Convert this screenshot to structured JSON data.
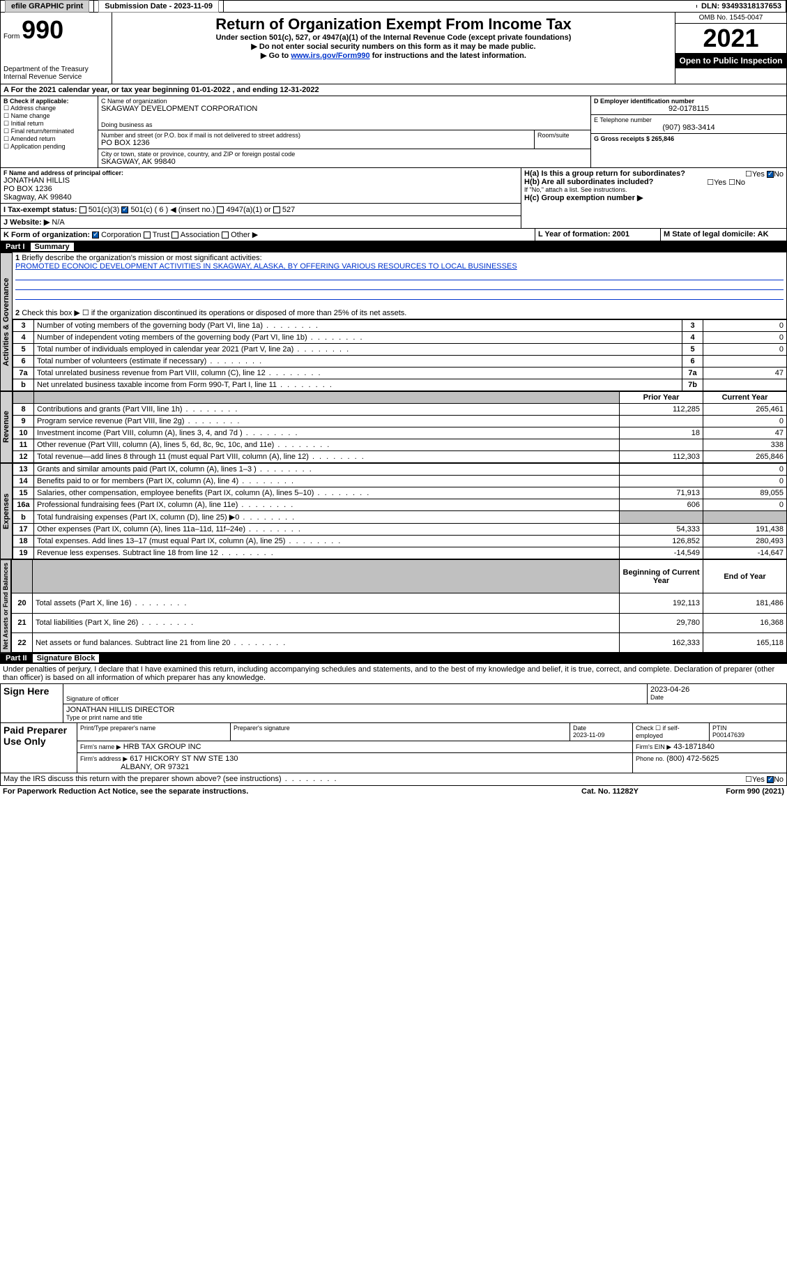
{
  "topbar": {
    "efile": "efile GRAPHIC print",
    "subdate_label": "Submission Date - 2023-11-09",
    "dln_label": "DLN: 93493318137653"
  },
  "header": {
    "form_small": "Form",
    "form_num": "990",
    "dept": "Department of the Treasury",
    "irs": "Internal Revenue Service",
    "title": "Return of Organization Exempt From Income Tax",
    "sub1": "Under section 501(c), 527, or 4947(a)(1) of the Internal Revenue Code (except private foundations)",
    "sub2": "▶ Do not enter social security numbers on this form as it may be made public.",
    "sub3_pre": "▶ Go to ",
    "sub3_link": "www.irs.gov/Form990",
    "sub3_post": " for instructions and the latest information.",
    "omb": "OMB No. 1545-0047",
    "year": "2021",
    "open": "Open to Public Inspection"
  },
  "a_line": {
    "text": "For the 2021 calendar year, or tax year beginning 01-01-2022   , and ending 12-31-2022"
  },
  "b": {
    "label": "B Check if applicable:",
    "items": [
      "Address change",
      "Name change",
      "Initial return",
      "Final return/terminated",
      "Amended return",
      "Application pending"
    ]
  },
  "c": {
    "name_label": "C Name of organization",
    "name": "SKAGWAY DEVELOPMENT CORPORATION",
    "dba_label": "Doing business as",
    "addr_label": "Number and street (or P.O. box if mail is not delivered to street address)",
    "room_label": "Room/suite",
    "addr": "PO BOX 1236",
    "city_label": "City or town, state or province, country, and ZIP or foreign postal code",
    "city": "SKAGWAY, AK  99840"
  },
  "d": {
    "label": "D Employer identification number",
    "val": "92-0178115"
  },
  "e": {
    "label": "E Telephone number",
    "val": "(907) 983-3414"
  },
  "g": {
    "label": "G Gross receipts $ 265,846"
  },
  "f": {
    "label": "F Name and address of principal officer:",
    "name": "JONATHAN HILLIS",
    "addr1": "PO BOX 1236",
    "addr2": "Skagway, AK  99840"
  },
  "h": {
    "a": "H(a)  Is this a group return for subordinates?",
    "b": "H(b)  Are all subordinates included?",
    "b_note": "If \"No,\" attach a list. See instructions.",
    "c": "H(c)  Group exemption number ▶",
    "yes": "Yes",
    "no": "No"
  },
  "i": {
    "label": "I   Tax-exempt status:",
    "opts": [
      "501(c)(3)",
      "501(c) ( 6 ) ◀ (insert no.)",
      "4947(a)(1) or",
      "527"
    ]
  },
  "j": {
    "label": "J   Website: ▶",
    "val": "N/A"
  },
  "k": {
    "label": "K Form of organization:",
    "opts": [
      "Corporation",
      "Trust",
      "Association",
      "Other ▶"
    ]
  },
  "l": {
    "label": "L Year of formation: 2001"
  },
  "m": {
    "label": "M State of legal domicile: AK"
  },
  "part1": {
    "num": "Part I",
    "title": "Summary"
  },
  "summary": {
    "line1_label": "Briefly describe the organization's mission or most significant activities:",
    "line1_val": "PROMOTED ECONOIC DEVELOPMENT ACTIVITIES IN SKAGWAY, ALASKA, BY OFFERING VARIOUS RESOURCES TO LOCAL BUSINESSES",
    "line2": "Check this box ▶ ☐ if the organization discontinued its operations or disposed of more than 25% of its net assets.",
    "rows_ag": [
      {
        "n": "3",
        "t": "Number of voting members of the governing body (Part VI, line 1a)",
        "box": "3",
        "v": "0"
      },
      {
        "n": "4",
        "t": "Number of independent voting members of the governing body (Part VI, line 1b)",
        "box": "4",
        "v": "0"
      },
      {
        "n": "5",
        "t": "Total number of individuals employed in calendar year 2021 (Part V, line 2a)",
        "box": "5",
        "v": "0"
      },
      {
        "n": "6",
        "t": "Total number of volunteers (estimate if necessary)",
        "box": "6",
        "v": ""
      },
      {
        "n": "7a",
        "t": "Total unrelated business revenue from Part VIII, column (C), line 12",
        "box": "7a",
        "v": "47"
      },
      {
        "n": "b",
        "t": "Net unrelated business taxable income from Form 990-T, Part I, line 11",
        "box": "7b",
        "v": ""
      }
    ],
    "py": "Prior Year",
    "cy": "Current Year",
    "rows_rev": [
      {
        "n": "8",
        "t": "Contributions and grants (Part VIII, line 1h)",
        "py": "112,285",
        "cy": "265,461"
      },
      {
        "n": "9",
        "t": "Program service revenue (Part VIII, line 2g)",
        "py": "",
        "cy": "0"
      },
      {
        "n": "10",
        "t": "Investment income (Part VIII, column (A), lines 3, 4, and 7d )",
        "py": "18",
        "cy": "47"
      },
      {
        "n": "11",
        "t": "Other revenue (Part VIII, column (A), lines 5, 6d, 8c, 9c, 10c, and 11e)",
        "py": "",
        "cy": "338"
      },
      {
        "n": "12",
        "t": "Total revenue—add lines 8 through 11 (must equal Part VIII, column (A), line 12)",
        "py": "112,303",
        "cy": "265,846"
      }
    ],
    "rows_exp": [
      {
        "n": "13",
        "t": "Grants and similar amounts paid (Part IX, column (A), lines 1–3 )",
        "py": "",
        "cy": "0"
      },
      {
        "n": "14",
        "t": "Benefits paid to or for members (Part IX, column (A), line 4)",
        "py": "",
        "cy": "0"
      },
      {
        "n": "15",
        "t": "Salaries, other compensation, employee benefits (Part IX, column (A), lines 5–10)",
        "py": "71,913",
        "cy": "89,055"
      },
      {
        "n": "16a",
        "t": "Professional fundraising fees (Part IX, column (A), line 11e)",
        "py": "606",
        "cy": "0"
      },
      {
        "n": "b",
        "t": "Total fundraising expenses (Part IX, column (D), line 25) ▶0",
        "py": "SHADE",
        "cy": "SHADE"
      },
      {
        "n": "17",
        "t": "Other expenses (Part IX, column (A), lines 11a–11d, 11f–24e)",
        "py": "54,333",
        "cy": "191,438"
      },
      {
        "n": "18",
        "t": "Total expenses. Add lines 13–17 (must equal Part IX, column (A), line 25)",
        "py": "126,852",
        "cy": "280,493"
      },
      {
        "n": "19",
        "t": "Revenue less expenses. Subtract line 18 from line 12",
        "py": "-14,549",
        "cy": "-14,647"
      }
    ],
    "bcy": "Beginning of Current Year",
    "ey": "End of Year",
    "rows_na": [
      {
        "n": "20",
        "t": "Total assets (Part X, line 16)",
        "py": "192,113",
        "cy": "181,486"
      },
      {
        "n": "21",
        "t": "Total liabilities (Part X, line 26)",
        "py": "29,780",
        "cy": "16,368"
      },
      {
        "n": "22",
        "t": "Net assets or fund balances. Subtract line 21 from line 20",
        "py": "162,333",
        "cy": "165,118"
      }
    ]
  },
  "vlabels": {
    "ag": "Activities & Governance",
    "rev": "Revenue",
    "exp": "Expenses",
    "na": "Net Assets or Fund Balances"
  },
  "part2": {
    "num": "Part II",
    "title": "Signature Block"
  },
  "sig": {
    "penalty": "Under penalties of perjury, I declare that I have examined this return, including accompanying schedules and statements, and to the best of my knowledge and belief, it is true, correct, and complete. Declaration of preparer (other than officer) is based on all information of which preparer has any knowledge.",
    "sign_here": "Sign Here",
    "sig_officer": "Signature of officer",
    "date": "Date",
    "date_val": "2023-04-26",
    "name_title": "JONATHAN HILLIS  DIRECTOR",
    "type_name": "Type or print name and title",
    "paid": "Paid Preparer Use Only",
    "p_name_label": "Print/Type preparer's name",
    "p_sig_label": "Preparer's signature",
    "p_date_label": "Date",
    "p_date": "2023-11-09",
    "p_check": "Check ☐ if self-employed",
    "ptin_label": "PTIN",
    "ptin": "P00147639",
    "firm_name_label": "Firm's name   ▶",
    "firm_name": "HRB TAX GROUP INC",
    "firm_ein_label": "Firm's EIN ▶",
    "firm_ein": "43-1871840",
    "firm_addr_label": "Firm's address ▶",
    "firm_addr1": "617 HICKORY ST NW STE 130",
    "firm_addr2": "ALBANY, OR  97321",
    "phone_label": "Phone no.",
    "phone": "(800) 472-5625",
    "discuss": "May the IRS discuss this return with the preparer shown above? (see instructions)"
  },
  "footer": {
    "paperwork": "For Paperwork Reduction Act Notice, see the separate instructions.",
    "cat": "Cat. No. 11282Y",
    "form": "Form 990 (2021)"
  }
}
